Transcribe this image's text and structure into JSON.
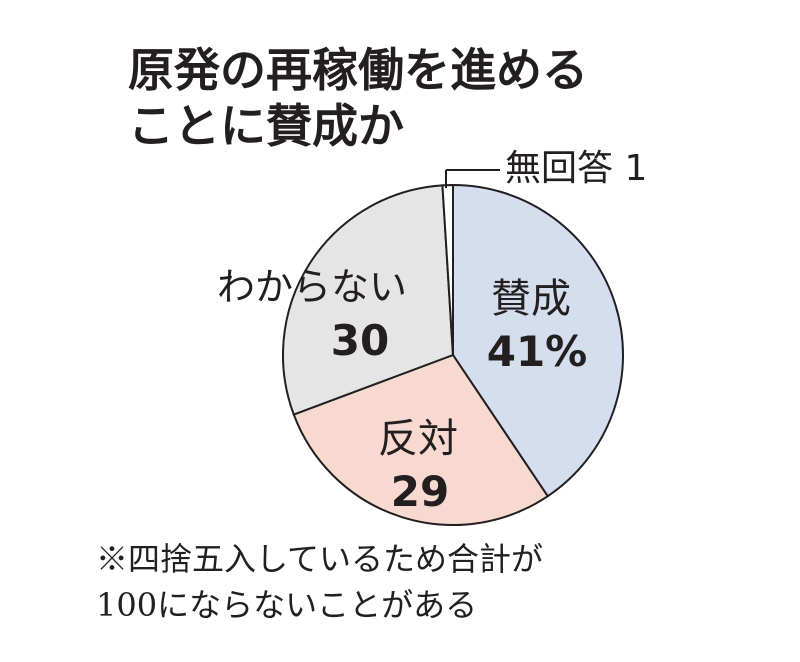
{
  "title": {
    "line1": "原発の再稼働を進める",
    "line2": "ことに賛成か"
  },
  "chart_data": {
    "type": "pie",
    "unit": "%",
    "slices": [
      {
        "name": "賛成",
        "value": 41,
        "value_label": "41%",
        "color": "#d5deef"
      },
      {
        "name": "反対",
        "value": 29,
        "value_label": "29",
        "color": "#f7d9cf"
      },
      {
        "name": "わからない",
        "value": 30,
        "value_label": "30",
        "color": "#e5e5e5"
      },
      {
        "name": "無回答",
        "value": 1,
        "value_label": "1",
        "color": "#ffffff"
      }
    ],
    "callout": "無回答 1"
  },
  "note": {
    "line1": "※四捨五入しているため合計が",
    "line2": "100にならないことがある"
  }
}
